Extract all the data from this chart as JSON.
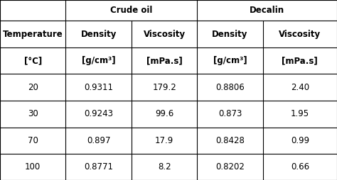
{
  "title_crude": "Crude oil",
  "title_decalin": "Decalin",
  "col_headers": [
    "Temperature",
    "Density",
    "Viscosity",
    "Density",
    "Viscosity"
  ],
  "unit_headers": [
    "°C",
    "g/cm³",
    "mPa.s",
    "g/cm³",
    "mPa.s"
  ],
  "unit_brackets": [
    "[°C]",
    "[g/cm³]",
    "[mPa.s]",
    "[g/cm³]",
    "[mPa.s]"
  ],
  "rows": [
    [
      "20",
      "0.9311",
      "179.2",
      "0.8806",
      "2.40"
    ],
    [
      "30",
      "0.9243",
      "99.6",
      "0.873",
      "1.95"
    ],
    [
      "70",
      "0.897",
      "17.9",
      "0.8428",
      "0.99"
    ],
    [
      "100",
      "0.8771",
      "8.2",
      "0.8202",
      "0.66"
    ]
  ],
  "bg_color": "#ffffff",
  "line_color": "#000000",
  "text_color": "#000000",
  "header_fontsize": 8.5,
  "data_fontsize": 8.5,
  "figsize": [
    4.74,
    2.54
  ],
  "dpi": 100
}
